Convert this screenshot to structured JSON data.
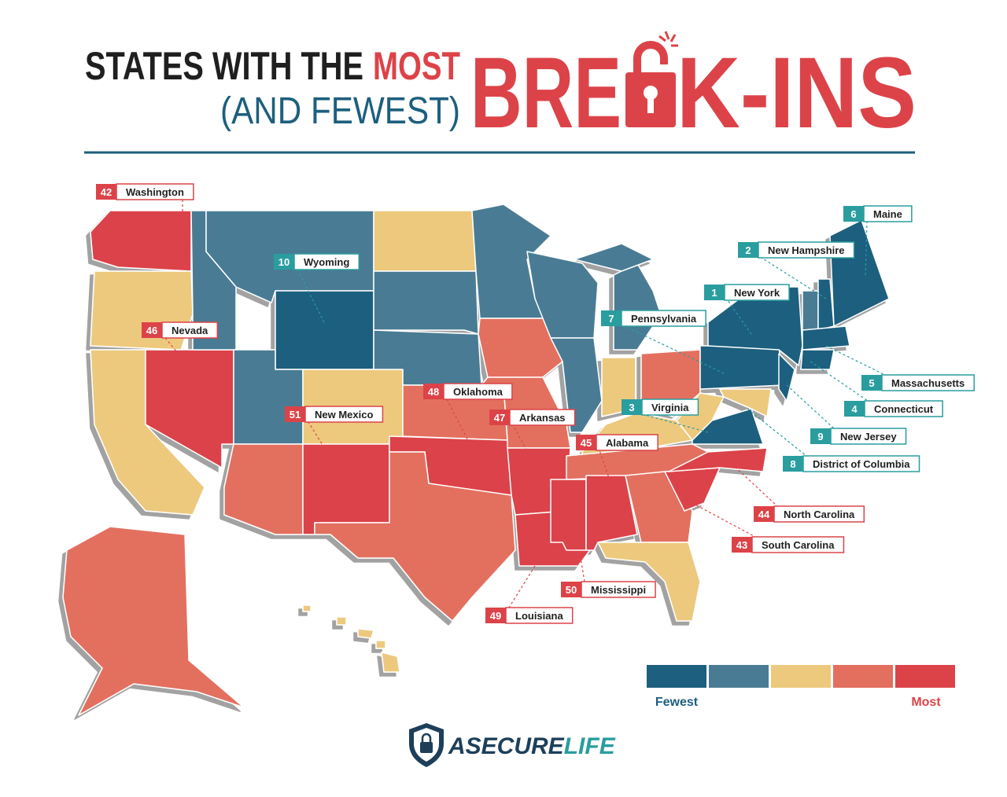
{
  "title": {
    "line1": "STATES WITH THE",
    "highlight": "MOST",
    "line2": "(AND FEWEST)",
    "big_left": "BRE",
    "big_right": "K-INS"
  },
  "callouts": [
    {
      "rank": 42,
      "state": "Washington",
      "color": "#dc4348"
    },
    {
      "rank": 10,
      "state": "Wyoming",
      "color": "#2a9d9f"
    },
    {
      "rank": 46,
      "state": "Nevada",
      "color": "#dc4348"
    },
    {
      "rank": 51,
      "state": "New Mexico",
      "color": "#dc4348"
    },
    {
      "rank": 48,
      "state": "Oklahoma",
      "color": "#dc4348"
    },
    {
      "rank": 47,
      "state": "Arkansas",
      "color": "#dc4348"
    },
    {
      "rank": 45,
      "state": "Alabama",
      "color": "#dc4348"
    },
    {
      "rank": 50,
      "state": "Mississippi",
      "color": "#dc4348"
    },
    {
      "rank": 49,
      "state": "Louisiana",
      "color": "#dc4348"
    },
    {
      "rank": 44,
      "state": "North Carolina",
      "color": "#dc4348"
    },
    {
      "rank": 43,
      "state": "South Carolina",
      "color": "#dc4348"
    },
    {
      "rank": 6,
      "state": "Maine",
      "color": "#2a9d9f"
    },
    {
      "rank": 2,
      "state": "New Hampshire",
      "color": "#2a9d9f"
    },
    {
      "rank": 1,
      "state": "New York",
      "color": "#2a9d9f"
    },
    {
      "rank": 7,
      "state": "Pennsylvania",
      "color": "#2a9d9f"
    },
    {
      "rank": 3,
      "state": "Virginia",
      "color": "#2a9d9f"
    },
    {
      "rank": 5,
      "state": "Massachusetts",
      "color": "#2a9d9f"
    },
    {
      "rank": 4,
      "state": "Connecticut",
      "color": "#2a9d9f"
    },
    {
      "rank": 9,
      "state": "New Jersey",
      "color": "#2a9d9f"
    },
    {
      "rank": 8,
      "state": "District of Columbia",
      "color": "#2a9d9f"
    }
  ],
  "legend": {
    "colors": [
      "#1d5f7e",
      "#4a7b94",
      "#edc97e",
      "#e36f5f",
      "#dc4348"
    ],
    "low_label": "Fewest",
    "high_label": "Most"
  },
  "logo": {
    "part1": "ASECURE",
    "part2": "LIFE"
  }
}
